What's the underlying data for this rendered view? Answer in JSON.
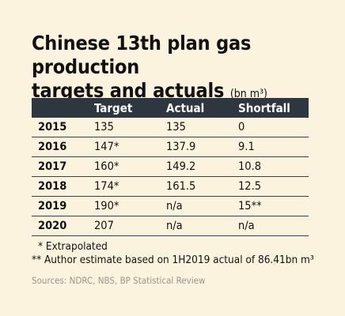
{
  "title": {
    "line1": "Chinese 13th plan gas production",
    "line2": "targets and actuals",
    "unit": "(bn m³)"
  },
  "table": {
    "headers": [
      "",
      "Target",
      "Actual",
      "Shortfall"
    ],
    "rows": [
      [
        "2015",
        "135",
        "135",
        "0"
      ],
      [
        "2016",
        "147*",
        "137.9",
        "9.1"
      ],
      [
        "2017",
        "160*",
        "149.2",
        "10.8"
      ],
      [
        "2018",
        "174*",
        "161.5",
        "12.5"
      ],
      [
        "2019",
        "190*",
        "n/a",
        "15**"
      ],
      [
        "2020",
        "207",
        "n/a",
        "n/a"
      ]
    ]
  },
  "notes": {
    "note1": "* Extrapolated",
    "note2": "** Author estimate based on 1H2019 actual of 86.41bn m³"
  },
  "sources": "Sources: NDRC, NBS, BP Statistical Review",
  "colors": {
    "background": "#fbf3dd",
    "header_fill": "#2e3640",
    "header_text": "#ffffff",
    "sources_text": "#9a9585"
  }
}
